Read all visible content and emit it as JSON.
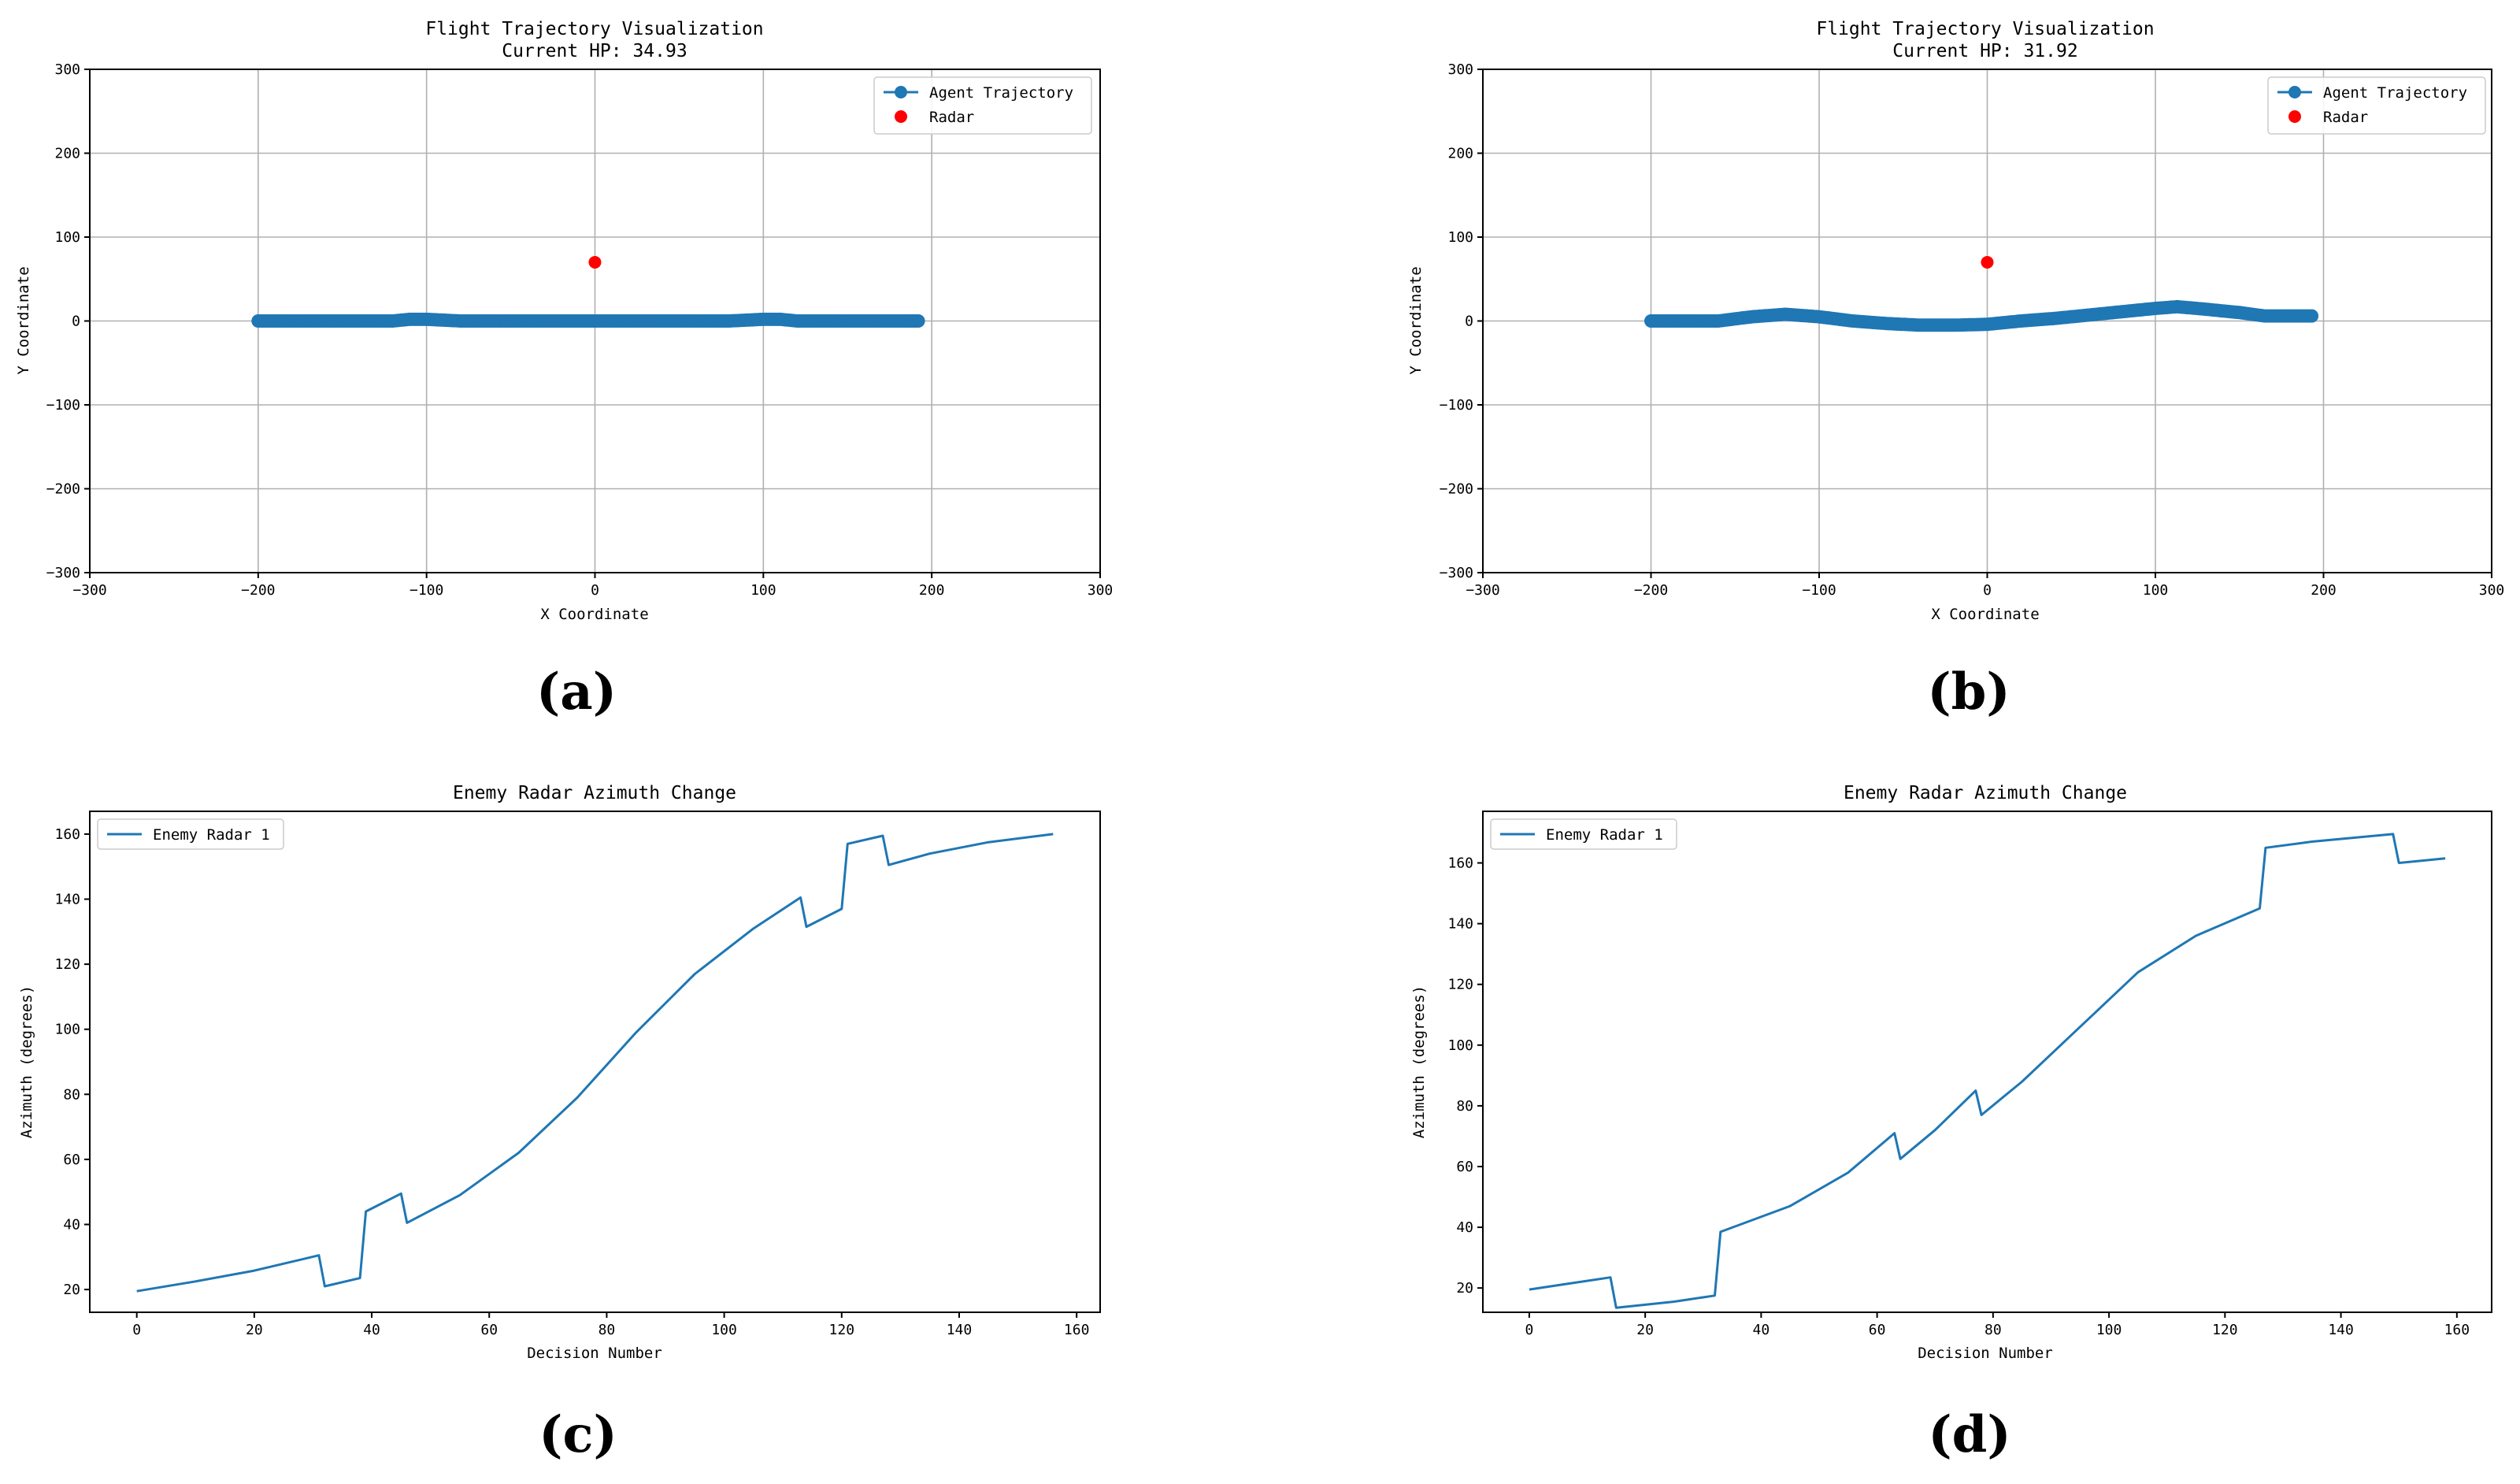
{
  "chart_data": [
    {
      "id": "a",
      "type": "scatter",
      "title": "Flight Trajectory Visualization",
      "subtitle": "Current HP: 34.93",
      "xlabel": "X Coordinate",
      "ylabel": "Y Coordinate",
      "xlim": [
        -300,
        300
      ],
      "ylim": [
        -300,
        300
      ],
      "xticks": [
        -300,
        -200,
        -100,
        0,
        100,
        200,
        300
      ],
      "yticks": [
        -300,
        -200,
        -100,
        0,
        100,
        200,
        300
      ],
      "grid": true,
      "legend_position": "top-right",
      "legend": [
        "Agent Trajectory",
        "Radar"
      ],
      "colors": {
        "trajectory": "#1f77b4",
        "radar": "#ff0000"
      },
      "radar": {
        "x": 0,
        "y": 70
      },
      "trajectory": {
        "x": [
          -200,
          -180,
          -160,
          -140,
          -120,
          -110,
          -100,
          -90,
          -80,
          -60,
          -40,
          -20,
          0,
          20,
          40,
          60,
          80,
          90,
          100,
          110,
          120,
          140,
          160,
          180,
          192
        ],
        "y": [
          0,
          0,
          0,
          0,
          0,
          2,
          2,
          1,
          0,
          0,
          0,
          0,
          0,
          0,
          0,
          0,
          0,
          1,
          2,
          2,
          0,
          0,
          0,
          0,
          0
        ]
      },
      "panel_label": "(a)"
    },
    {
      "id": "b",
      "type": "scatter",
      "title": "Flight Trajectory Visualization",
      "subtitle": "Current HP: 31.92",
      "xlabel": "X Coordinate",
      "ylabel": "Y Coordinate",
      "xlim": [
        -300,
        300
      ],
      "ylim": [
        -300,
        300
      ],
      "xticks": [
        -300,
        -200,
        -100,
        0,
        100,
        200,
        300
      ],
      "yticks": [
        -300,
        -200,
        -100,
        0,
        100,
        200,
        300
      ],
      "grid": true,
      "legend_position": "top-right",
      "legend": [
        "Agent Trajectory",
        "Radar"
      ],
      "colors": {
        "trajectory": "#1f77b4",
        "radar": "#ff0000"
      },
      "radar": {
        "x": 0,
        "y": 70
      },
      "trajectory": {
        "x": [
          -200,
          -180,
          -160,
          -140,
          -120,
          -100,
          -80,
          -60,
          -40,
          -20,
          0,
          20,
          40,
          60,
          80,
          100,
          113,
          130,
          150,
          165,
          180,
          193
        ],
        "y": [
          0,
          0,
          0,
          5,
          8,
          5,
          0,
          -3,
          -5,
          -5,
          -4,
          0,
          3,
          7,
          11,
          15,
          17,
          14,
          10,
          6,
          6,
          6
        ]
      },
      "panel_label": "(b)"
    },
    {
      "id": "c",
      "type": "line",
      "title": "Enemy Radar Azimuth Change",
      "xlabel": "Decision Number",
      "ylabel": "Azimuth (degrees)",
      "xlim": [
        -8,
        164
      ],
      "ylim": [
        13,
        167
      ],
      "xticks": [
        0,
        20,
        40,
        60,
        80,
        100,
        120,
        140,
        160
      ],
      "yticks": [
        20,
        40,
        60,
        80,
        100,
        120,
        140,
        160
      ],
      "grid": false,
      "legend_position": "top-left",
      "series": [
        {
          "name": "Enemy Radar 1",
          "color": "#1f77b4",
          "x": [
            0,
            10,
            20,
            31,
            32,
            38,
            39,
            45,
            46,
            55,
            65,
            75,
            85,
            95,
            105,
            113,
            114,
            120,
            121,
            127,
            128,
            135,
            145,
            156
          ],
          "y": [
            19.5,
            22.5,
            25.8,
            30.5,
            21.0,
            23.5,
            44.0,
            49.5,
            40.5,
            49.0,
            62.0,
            79.0,
            99.0,
            117.0,
            131.0,
            140.5,
            131.5,
            137.0,
            157.0,
            159.5,
            150.5,
            154.0,
            157.5,
            160.0
          ]
        }
      ],
      "panel_label": "(c)"
    },
    {
      "id": "d",
      "type": "line",
      "title": "Enemy Radar Azimuth Change",
      "xlabel": "Decision Number",
      "ylabel": "Azimuth (degrees)",
      "xlim": [
        -8,
        166
      ],
      "ylim": [
        12,
        177
      ],
      "xticks": [
        0,
        20,
        40,
        60,
        80,
        100,
        120,
        140,
        160
      ],
      "yticks": [
        20,
        40,
        60,
        80,
        100,
        120,
        140,
        160
      ],
      "grid": false,
      "legend_position": "top-left",
      "series": [
        {
          "name": "Enemy Radar 1",
          "color": "#1f77b4",
          "x": [
            0,
            7,
            14,
            15,
            25,
            32,
            33,
            45,
            55,
            63,
            64,
            70,
            77,
            78,
            85,
            95,
            105,
            115,
            126,
            127,
            135,
            149,
            150,
            158
          ],
          "y": [
            19.5,
            21.5,
            23.5,
            13.5,
            15.5,
            17.5,
            38.5,
            47.0,
            58.0,
            71.0,
            62.5,
            72.0,
            85.0,
            77.0,
            88.0,
            106.0,
            124.0,
            136.0,
            145.0,
            165.0,
            167.0,
            169.5,
            160.0,
            161.5
          ]
        }
      ],
      "panel_label": "(d)"
    }
  ]
}
